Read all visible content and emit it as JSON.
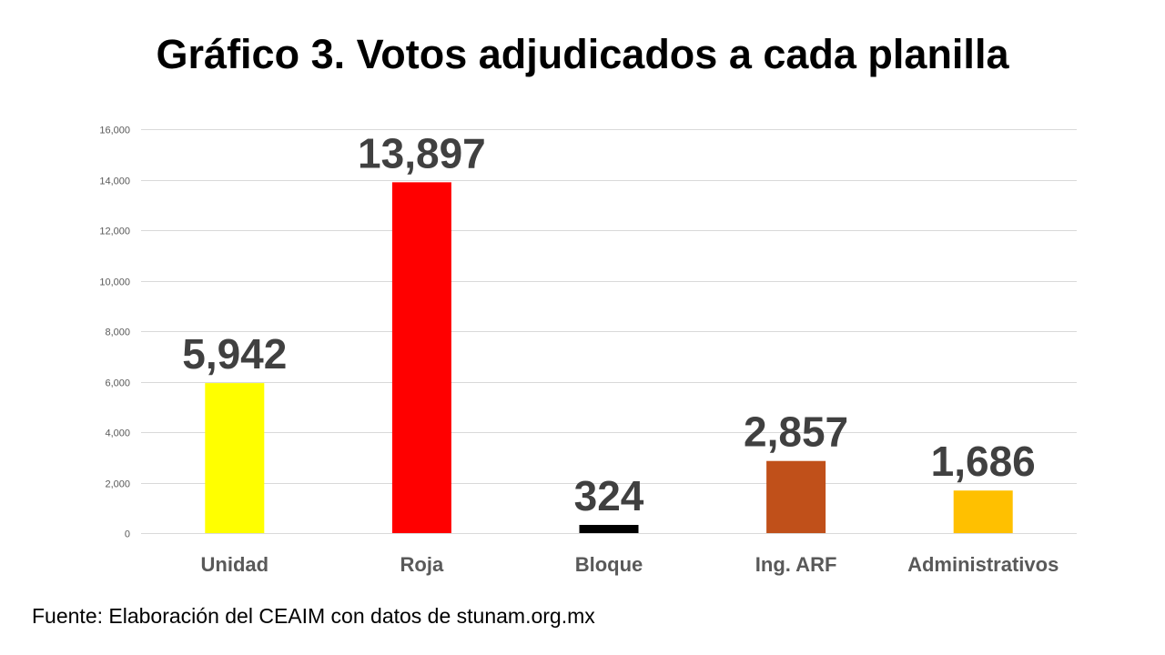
{
  "chart_data": {
    "type": "bar",
    "title": "Gráfico 3. Votos adjudicados a cada planilla",
    "xlabel": "",
    "ylabel": "",
    "categories": [
      "Unidad",
      "Roja",
      "Bloque",
      "Ing. ARF",
      "Administrativos"
    ],
    "values": [
      5942,
      13897,
      324,
      2857,
      1686
    ],
    "data_labels": [
      "5,942",
      "13,897",
      "324",
      "2,857",
      "1,686"
    ],
    "colors": [
      "#FFFF00",
      "#FF0000",
      "#000000",
      "#C0501A",
      "#FFC000"
    ],
    "ylim": [
      0,
      16000
    ],
    "yticks": [
      0,
      2000,
      4000,
      6000,
      8000,
      10000,
      12000,
      14000,
      16000
    ],
    "ytick_labels": [
      "0",
      "2,000",
      "4,000",
      "6,000",
      "8,000",
      "10,000",
      "12,000",
      "14,000",
      "16,000"
    ],
    "grid": true,
    "legend": "none"
  },
  "source_note": "Fuente: Elaboración del CEAIM con datos de stunam.org.mx"
}
